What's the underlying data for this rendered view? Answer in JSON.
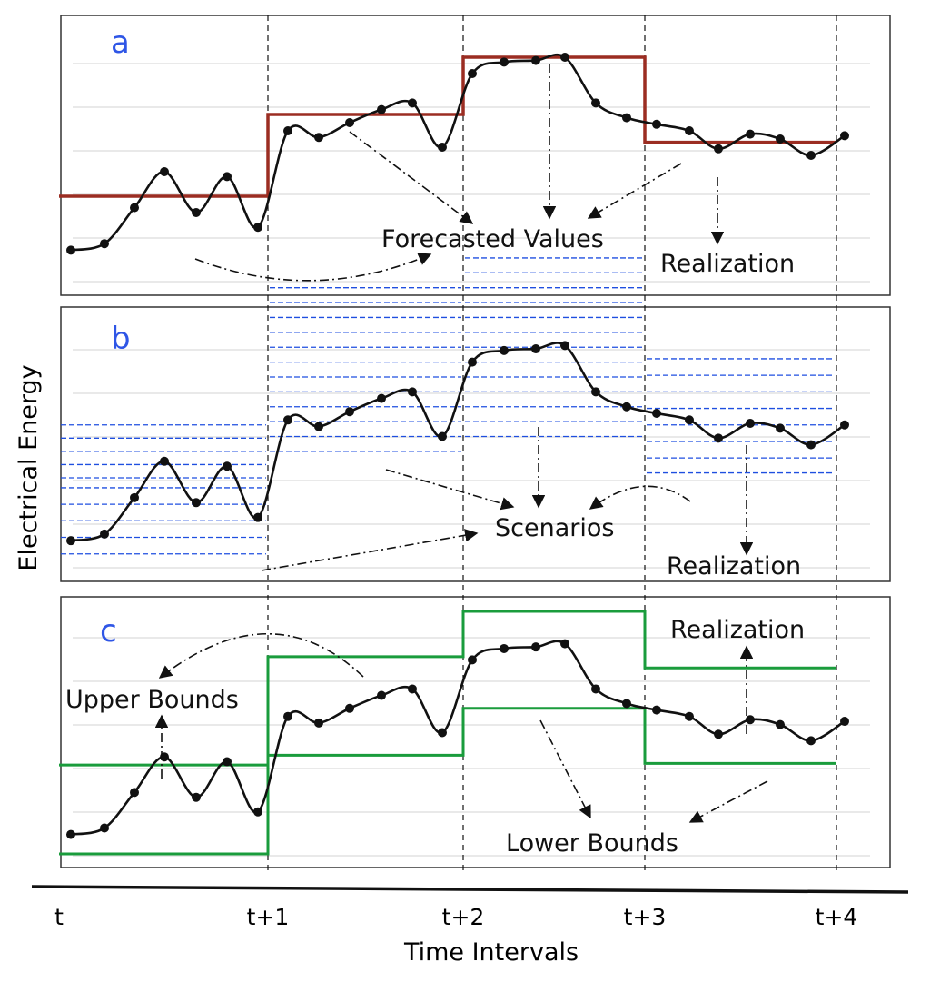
{
  "axes": {
    "x_title": "Time Intervals",
    "y_title": "Electrical Energy",
    "x_ticks": [
      "t",
      "t+1",
      "t+2",
      "t+3",
      "t+4"
    ]
  },
  "realization": [
    1.2,
    1.6,
    3.8,
    6.0,
    3.5,
    5.7,
    2.6,
    8.5,
    8.1,
    9.0,
    9.8,
    10.2,
    7.5,
    12.0,
    12.7,
    12.8,
    13.0,
    10.2,
    9.3,
    8.9,
    8.5,
    7.4,
    8.3,
    8.0,
    7.0,
    8.2
  ],
  "panels": [
    {
      "label": "a",
      "label_color": "#2f56e6",
      "step_color": "#9b2d22",
      "forecast": [
        4.5,
        9.5,
        13.0,
        7.8
      ],
      "annotations": {
        "forecast": "Forecasted Values",
        "realization": "Realization"
      }
    },
    {
      "label": "b",
      "label_color": "#2f56e6",
      "scenario_color": "#1f4fe0",
      "scenarios": [
        [
          0.4,
          1.4,
          2.4,
          3.4,
          4.4,
          5.0,
          5.8,
          6.6,
          7.4,
          8.2
        ],
        [
          6.6,
          7.5,
          8.4,
          9.3,
          10.2,
          11.1,
          12.0,
          12.9,
          13.8,
          14.7,
          15.6,
          16.5
        ],
        [
          7.5,
          8.4,
          9.3,
          10.2,
          11.1,
          12.0,
          12.9,
          13.8,
          14.7,
          15.6,
          16.5,
          17.4,
          18.3
        ],
        [
          5.3,
          6.2,
          7.2,
          8.2,
          9.2,
          10.2,
          11.2,
          12.2
        ]
      ],
      "annotations": {
        "scenarios": "Scenarios",
        "realization": "Realization"
      }
    },
    {
      "label": "c",
      "label_color": "#2f56e6",
      "bound_color": "#1a9c3c",
      "upper": [
        5.5,
        12.2,
        15.0,
        11.5
      ],
      "lower": [
        0.0,
        6.1,
        9.0,
        5.6
      ],
      "annotations": {
        "upper": "Upper Bounds",
        "lower": "Lower Bounds",
        "realization": "Realization"
      }
    }
  ]
}
